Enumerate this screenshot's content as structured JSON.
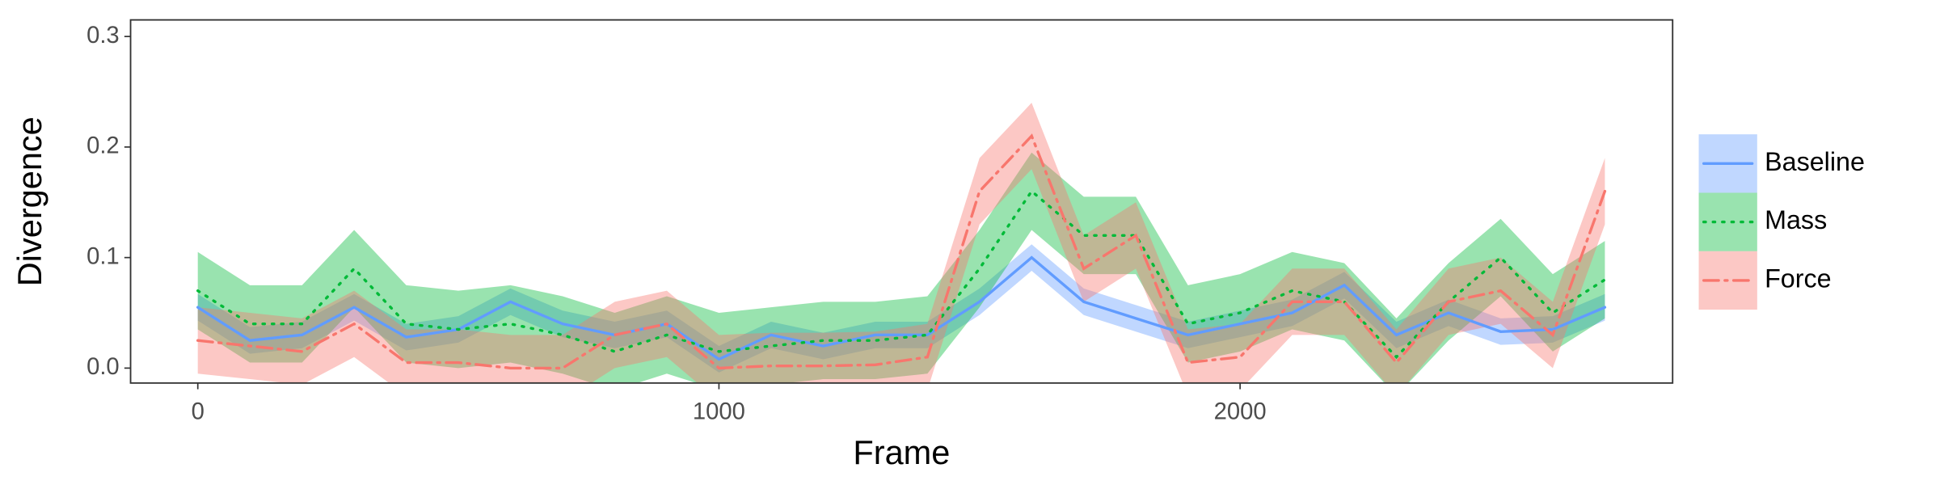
{
  "chart_data": {
    "type": "line",
    "xlabel": "Frame",
    "ylabel": "Divergence",
    "x": [
      0,
      100,
      200,
      300,
      400,
      500,
      600,
      700,
      800,
      900,
      1000,
      1100,
      1200,
      1300,
      1400,
      1500,
      1600,
      1700,
      1800,
      1900,
      2000,
      2100,
      2200,
      2300,
      2400,
      2500,
      2600,
      2700
    ],
    "xlim": [
      -129,
      2830
    ],
    "xticks": [
      0,
      1000,
      2000
    ],
    "ylim": [
      -0.0135,
      0.315
    ],
    "yticks": [
      {
        "value": 0,
        "label": "0.0"
      },
      0.1,
      0.2,
      0.3
    ],
    "grid": false,
    "legend": "right",
    "series": [
      {
        "name": "Baseline",
        "color": "#619CFF",
        "dash": "solid",
        "values": [
          0.055,
          0.025,
          0.03,
          0.055,
          0.028,
          0.035,
          0.06,
          0.04,
          0.03,
          0.04,
          0.008,
          0.03,
          0.02,
          0.03,
          0.03,
          0.06,
          0.1,
          0.06,
          0.045,
          0.03,
          0.04,
          0.05,
          0.075,
          0.03,
          0.05,
          0.033,
          0.035,
          0.055
        ],
        "lower": [
          0.043,
          0.013,
          0.018,
          0.043,
          0.016,
          0.023,
          0.048,
          0.028,
          0.018,
          0.028,
          -0.004,
          0.018,
          0.008,
          0.018,
          0.018,
          0.048,
          0.088,
          0.048,
          0.033,
          0.018,
          0.028,
          0.038,
          0.063,
          0.018,
          0.038,
          0.021,
          0.023,
          0.043
        ],
        "upper": [
          0.067,
          0.037,
          0.042,
          0.067,
          0.04,
          0.047,
          0.072,
          0.052,
          0.042,
          0.052,
          0.02,
          0.042,
          0.032,
          0.042,
          0.042,
          0.072,
          0.112,
          0.072,
          0.057,
          0.042,
          0.052,
          0.062,
          0.087,
          0.042,
          0.062,
          0.045,
          0.047,
          0.067
        ]
      },
      {
        "name": "Mass",
        "color": "#00BA38",
        "dash": "dotted",
        "values": [
          0.07,
          0.04,
          0.04,
          0.09,
          0.04,
          0.035,
          0.04,
          0.03,
          0.015,
          0.03,
          0.015,
          0.02,
          0.025,
          0.025,
          0.03,
          0.09,
          0.16,
          0.12,
          0.12,
          0.04,
          0.05,
          0.07,
          0.06,
          0.01,
          0.06,
          0.1,
          0.05,
          0.08
        ],
        "lower": [
          0.035,
          0.005,
          0.005,
          0.055,
          0.005,
          0,
          0.005,
          -0.005,
          -0.02,
          -0.005,
          -0.02,
          -0.015,
          -0.01,
          -0.01,
          -0.005,
          0.055,
          0.125,
          0.085,
          0.085,
          0.005,
          0.015,
          0.035,
          0.025,
          -0.025,
          0.025,
          0.065,
          0.015,
          0.045
        ],
        "upper": [
          0.105,
          0.075,
          0.075,
          0.125,
          0.075,
          0.07,
          0.075,
          0.065,
          0.05,
          0.065,
          0.05,
          0.055,
          0.06,
          0.06,
          0.065,
          0.125,
          0.195,
          0.155,
          0.155,
          0.075,
          0.085,
          0.105,
          0.095,
          0.045,
          0.095,
          0.135,
          0.085,
          0.115
        ]
      },
      {
        "name": "Force",
        "color": "#F8766D",
        "dash": "dashdot",
        "values": [
          0.025,
          0.02,
          0.015,
          0.04,
          0.005,
          0.005,
          0,
          0,
          0.03,
          0.04,
          0,
          0.002,
          0.002,
          0.003,
          0.01,
          0.16,
          0.21,
          0.09,
          0.12,
          0.005,
          0.01,
          0.06,
          0.06,
          0.005,
          0.06,
          0.07,
          0.03,
          0.16
        ],
        "lower": [
          -0.005,
          -0.01,
          -0.015,
          0.01,
          -0.025,
          -0.025,
          -0.03,
          -0.03,
          0,
          0.01,
          -0.03,
          -0.028,
          -0.028,
          -0.027,
          -0.02,
          0.13,
          0.18,
          0.06,
          0.09,
          -0.025,
          -0.02,
          0.03,
          0.03,
          -0.025,
          0.03,
          0.04,
          0,
          0.13
        ],
        "upper": [
          0.055,
          0.05,
          0.045,
          0.07,
          0.035,
          0.035,
          0.03,
          0.03,
          0.06,
          0.07,
          0.03,
          0.032,
          0.032,
          0.033,
          0.04,
          0.19,
          0.24,
          0.12,
          0.15,
          0.035,
          0.04,
          0.09,
          0.09,
          0.035,
          0.09,
          0.1,
          0.06,
          0.19
        ]
      }
    ]
  }
}
